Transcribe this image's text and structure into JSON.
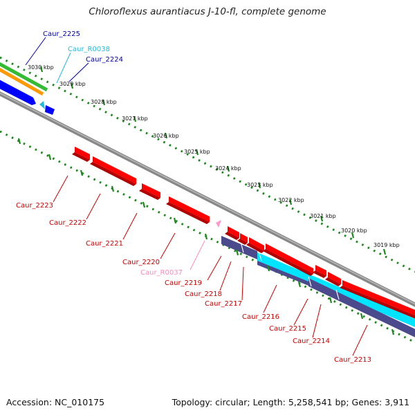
{
  "title": "Chloroflexus aurantiacus J-10-fl, complete genome",
  "footer": {
    "accession": "Accession: NC_010175",
    "summary": "Topology: circular; Length: 5,258,541 bp; Genes: 3,911"
  },
  "colors": {
    "cds": "#ff0000",
    "cds_dark": "#b30000",
    "rna": "#ff99cc",
    "minus_cds": "#0000ff",
    "cyan_track": "#00e5ff",
    "purple_track": "#4b4a8c",
    "green_track": "#33bb33",
    "orange_track": "#ff9900",
    "backbone": "#888888",
    "ruler_dots": "#1a8a1a",
    "label_red": "#cc0000",
    "label_pink": "#ff88bb",
    "label_cyan": "#22bbdd",
    "label_blue": "#0000aa"
  },
  "ruler_ticks": [
    {
      "label": "3030 kbp"
    },
    {
      "label": "3029 kbp"
    },
    {
      "label": "3028 kbp"
    },
    {
      "label": "3027 kbp"
    },
    {
      "label": "3026 kbp"
    },
    {
      "label": "3025 kbp"
    },
    {
      "label": "3024 kbp"
    },
    {
      "label": "3023 kbp"
    },
    {
      "label": "3022 kbp"
    },
    {
      "label": "3021 kbp"
    },
    {
      "label": "3020 kbp"
    },
    {
      "label": "3019 kbp"
    }
  ],
  "genes_upper": [
    {
      "name": "Caur_2225",
      "type": "blue"
    },
    {
      "name": "Caur_R0038",
      "type": "cyan"
    },
    {
      "name": "Caur_2224",
      "type": "blue"
    }
  ],
  "genes_lower": [
    {
      "name": "Caur_2223",
      "type": "red"
    },
    {
      "name": "Caur_2222",
      "type": "red"
    },
    {
      "name": "Caur_2221",
      "type": "red"
    },
    {
      "name": "Caur_2220",
      "type": "red"
    },
    {
      "name": "Caur_R0037",
      "type": "pink"
    },
    {
      "name": "Caur_2219",
      "type": "red"
    },
    {
      "name": "Caur_2218",
      "type": "red"
    },
    {
      "name": "Caur_2217",
      "type": "red"
    },
    {
      "name": "Caur_2216",
      "type": "red"
    },
    {
      "name": "Caur_2215",
      "type": "red"
    },
    {
      "name": "Caur_2214",
      "type": "red"
    },
    {
      "name": "Caur_2213",
      "type": "red"
    }
  ]
}
